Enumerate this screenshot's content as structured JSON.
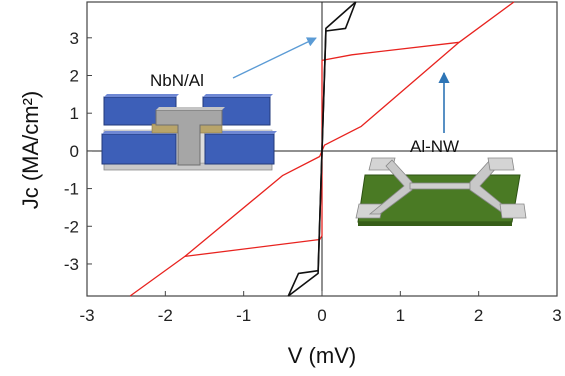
{
  "chart_data": {
    "type": "line",
    "xlabel": "V (mV)",
    "ylabel": "Jc (MA/cm²)",
    "xlim": [
      -3,
      3
    ],
    "ylim": [
      -3.85,
      3.95
    ],
    "x_ticks": [
      "-3",
      "-2",
      "-1",
      "0",
      "1",
      "2",
      "3"
    ],
    "y_ticks": [
      "-3",
      "-2",
      "-1",
      "0",
      "1",
      "2",
      "3"
    ],
    "grid": false,
    "series": [
      {
        "color": "#e8231f",
        "x": [
          -2.45,
          -1.75,
          -0.5,
          -0.03,
          0,
          0,
          0.38,
          1.75,
          2.45
        ],
        "y": [
          -3.85,
          -2.8,
          -0.65,
          -0.15,
          0,
          2.4,
          2.55,
          2.88,
          3.95
        ]
      },
      {
        "color": "#e8231f",
        "x": [
          -1.75,
          -0.03,
          0,
          0,
          0.03,
          0.5,
          1.75
        ],
        "y": [
          -2.8,
          -2.35,
          -2.25,
          0,
          0.15,
          0.65,
          2.88
        ]
      },
      {
        "color": "#111111",
        "x": [
          -0.43,
          -0.3,
          -0.05,
          0.05,
          0.3,
          0.43
        ],
        "y": [
          -3.85,
          -3.25,
          -3.18,
          3.18,
          3.25,
          3.95
        ]
      },
      {
        "color": "#111111",
        "x": [
          -0.43,
          -0.05,
          0.05,
          0.43
        ],
        "y": [
          -3.85,
          -3.25,
          3.25,
          3.95
        ]
      }
    ],
    "annotations": [
      {
        "text": "NbN/Al",
        "color": "#5b9bd5"
      },
      {
        "text": "Al-NW",
        "color": "#2e75b6"
      }
    ]
  }
}
